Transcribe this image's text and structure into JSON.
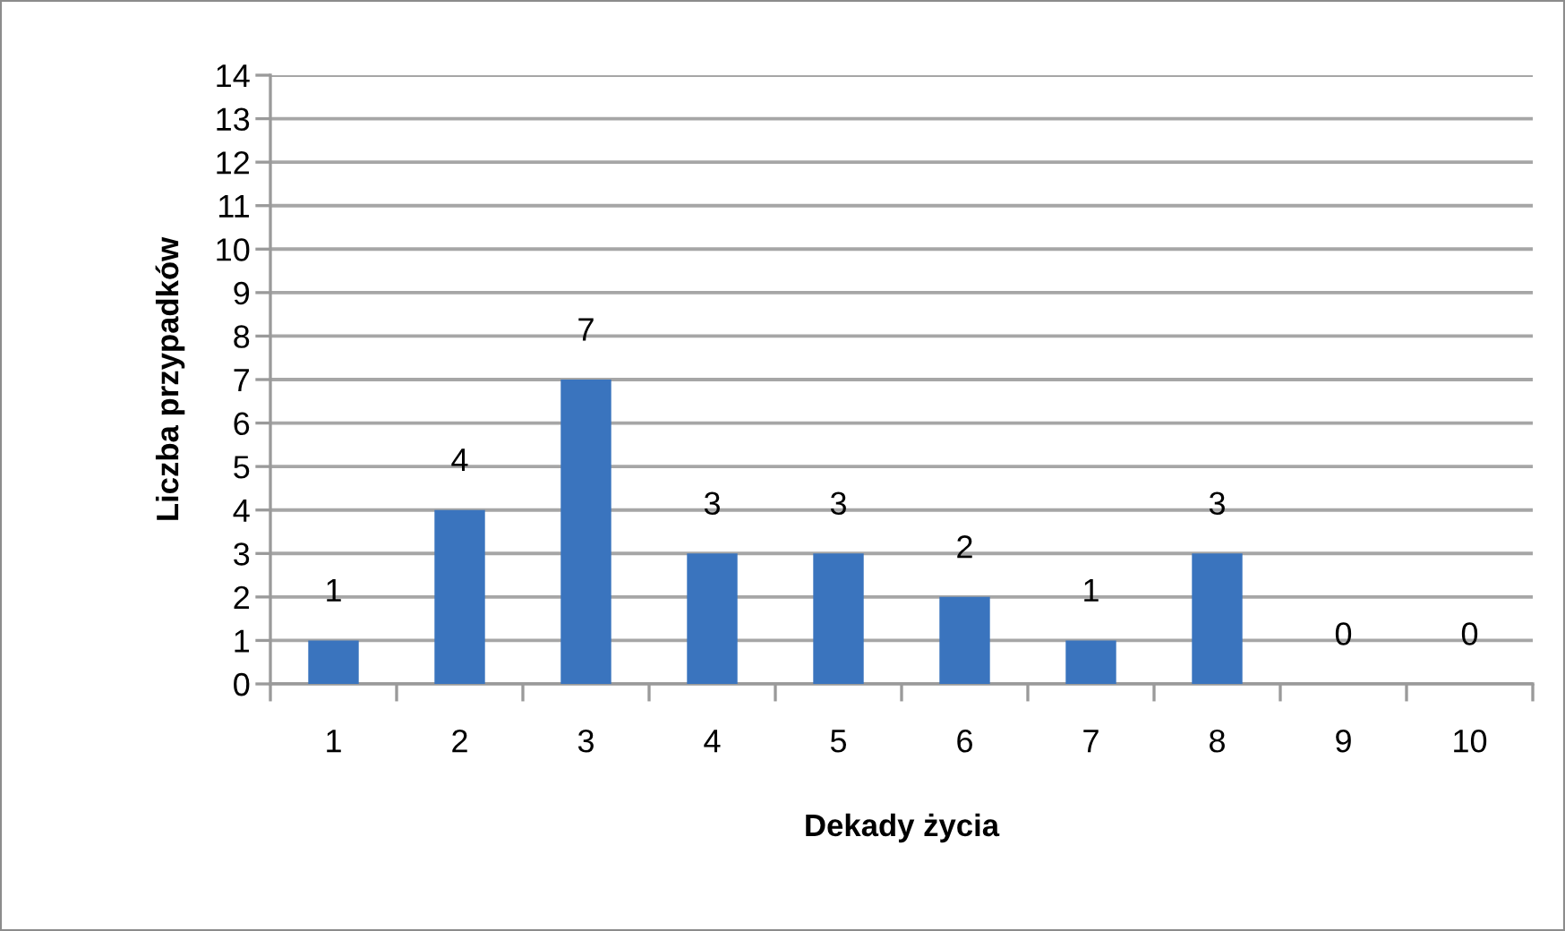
{
  "chart_data": {
    "type": "bar",
    "xlabel": "Dekady życia",
    "ylabel": "Liczba przypadków",
    "categories": [
      "1",
      "2",
      "3",
      "4",
      "5",
      "6",
      "7",
      "8",
      "9",
      "10"
    ],
    "values": [
      1,
      4,
      7,
      3,
      3,
      2,
      1,
      3,
      0,
      0
    ],
    "color": "#3a74be",
    "ylim": [
      0,
      14
    ],
    "yticks": [
      0,
      1,
      2,
      3,
      4,
      5,
      6,
      7,
      8,
      9,
      10,
      11,
      12,
      13,
      14
    ],
    "grid": "y",
    "data_labels": true
  }
}
